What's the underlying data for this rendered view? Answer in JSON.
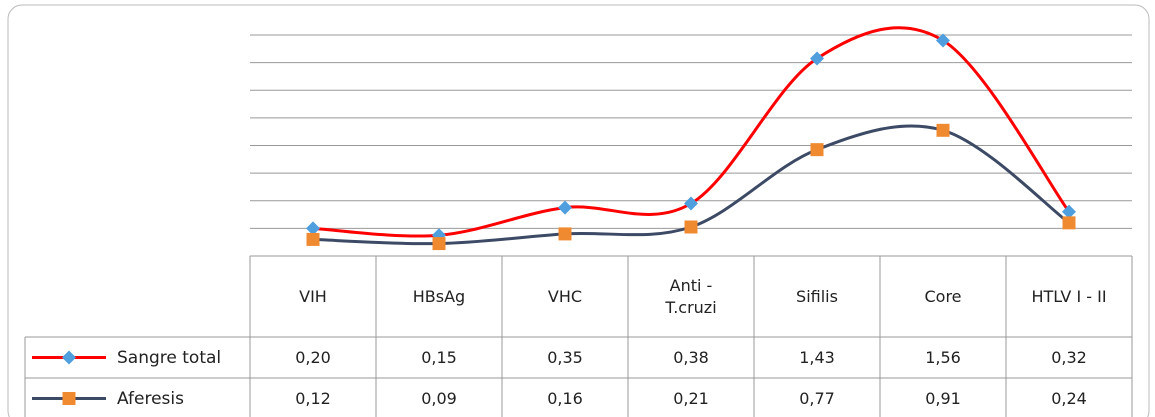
{
  "chart_data": {
    "type": "line",
    "categories": [
      "VIH",
      "HBsAg",
      "VHC",
      "Anti - T.cruzi",
      "Sifilis",
      "Core",
      "HTLV I - II"
    ],
    "series": [
      {
        "name": "Sangre total",
        "color": "#ff0000",
        "marker_color": "#4f9ede",
        "marker": "diamond",
        "values": [
          0.2,
          0.15,
          0.35,
          0.38,
          1.43,
          1.56,
          0.32
        ],
        "value_labels": [
          "0,20",
          "0,15",
          "0,35",
          "0,38",
          "1,43",
          "1,56",
          "0,32"
        ]
      },
      {
        "name": "Aferesis",
        "color": "#3d4a66",
        "marker_color": "#f08a30",
        "marker": "square",
        "values": [
          0.12,
          0.09,
          0.16,
          0.21,
          0.77,
          0.91,
          0.24
        ],
        "value_labels": [
          "0,12",
          "0,09",
          "0,16",
          "0,21",
          "0,77",
          "0,91",
          "0,24"
        ]
      }
    ],
    "ylim": [
      0,
      1.6
    ],
    "yticks": [
      0,
      0.2,
      0.4,
      0.6,
      0.8,
      1.0,
      1.2,
      1.4,
      1.6
    ],
    "grid": true
  }
}
